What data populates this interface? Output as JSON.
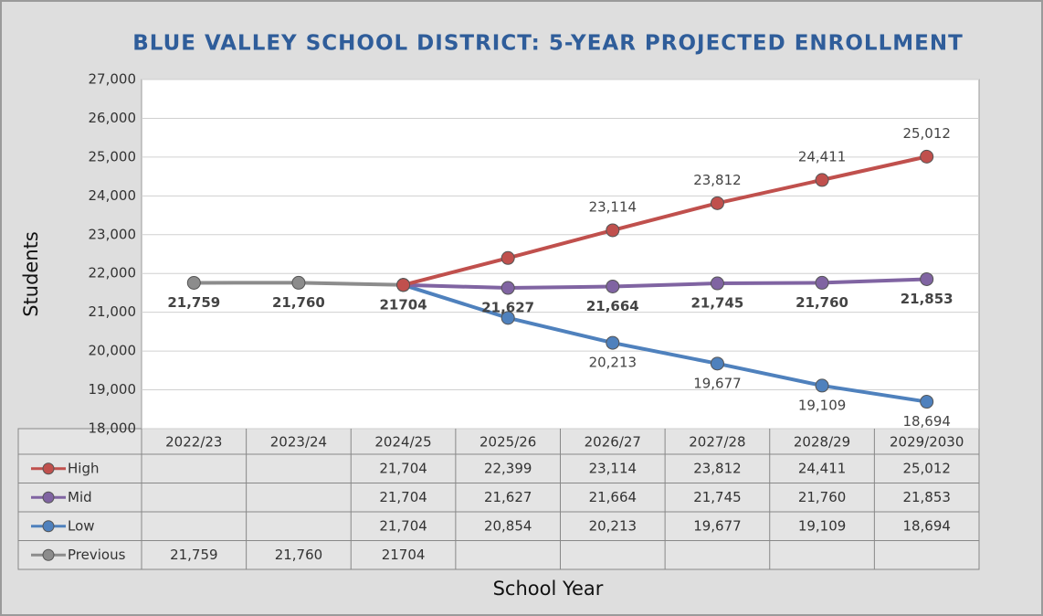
{
  "chart_data": {
    "type": "line",
    "title": "BLUE VALLEY SCHOOL DISTRICT: 5-YEAR PROJECTED ENROLLMENT",
    "x_label": "School Year",
    "y_label": "Students",
    "categories": [
      "2022/23",
      "2023/24",
      "2024/25",
      "2025/26",
      "2026/27",
      "2027/28",
      "2028/29",
      "2029/2030"
    ],
    "ylim": [
      18000,
      27000
    ],
    "yticks": [
      {
        "value": 18000,
        "label": "18,000"
      },
      {
        "value": 19000,
        "label": "19,000"
      },
      {
        "value": 20000,
        "label": "20,000"
      },
      {
        "value": 21000,
        "label": "21,000"
      },
      {
        "value": 22000,
        "label": "22,000"
      },
      {
        "value": 23000,
        "label": "23,000"
      },
      {
        "value": 24000,
        "label": "24,000"
      },
      {
        "value": 25000,
        "label": "25,000"
      },
      {
        "value": 26000,
        "label": "26,000"
      },
      {
        "value": 27000,
        "label": "27,000"
      }
    ],
    "grid": true,
    "data_table": true,
    "series": [
      {
        "name": "High",
        "color": "#c0504d",
        "values": [
          null,
          null,
          21704,
          22399,
          23114,
          23812,
          24411,
          25012
        ],
        "value_labels": [
          null,
          null,
          "21,704",
          "22,399",
          "23,114",
          "23,812",
          "24,411",
          "25,012"
        ],
        "label_points": [
          4,
          5,
          6,
          7
        ],
        "label_position": "above",
        "label_bold": false
      },
      {
        "name": "Mid",
        "color": "#8064a2",
        "values": [
          null,
          null,
          21704,
          21627,
          21664,
          21745,
          21760,
          21853
        ],
        "value_labels": [
          null,
          null,
          "21,704",
          "21,627",
          "21,664",
          "21,745",
          "21,760",
          "21,853"
        ],
        "label_points": [
          3,
          4,
          5,
          6,
          7
        ],
        "label_position": "below",
        "label_bold": true
      },
      {
        "name": "Low",
        "color": "#4f81bd",
        "values": [
          null,
          null,
          21704,
          20854,
          20213,
          19677,
          19109,
          18694
        ],
        "value_labels": [
          null,
          null,
          "21,704",
          "20,854",
          "20,213",
          "19,677",
          "19,109",
          "18,694"
        ],
        "label_points": [
          4,
          5,
          6,
          7
        ],
        "label_position": "below",
        "label_bold": false
      },
      {
        "name": "Previous",
        "color": "#8c8c8c",
        "values": [
          21759,
          21760,
          21704,
          null,
          null,
          null,
          null,
          null
        ],
        "value_labels": [
          "21,759",
          "21,760",
          "21704",
          null,
          null,
          null,
          null,
          null
        ],
        "label_points": [
          0,
          1,
          2
        ],
        "label_position": "below",
        "label_bold": true
      }
    ]
  }
}
